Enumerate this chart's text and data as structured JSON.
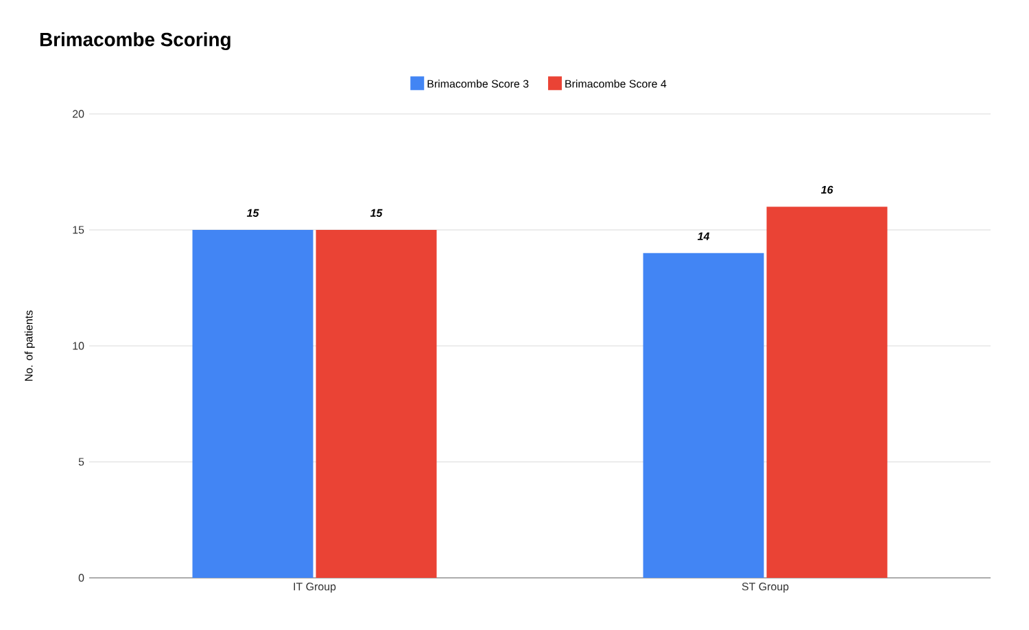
{
  "chart_data": {
    "type": "bar",
    "title": "Brimacombe Scoring",
    "ylabel": "No. of patients",
    "categories": [
      "IT Group",
      "ST Group"
    ],
    "series": [
      {
        "name": "Brimacombe Score 3",
        "color": "#4285f4",
        "values": [
          15,
          14
        ]
      },
      {
        "name": "Brimacombe Score 4",
        "color": "#ea4335",
        "values": [
          15,
          16
        ]
      }
    ],
    "ylim": [
      0,
      20
    ],
    "yticks": [
      0,
      5,
      10,
      15,
      20
    ],
    "grid": "y",
    "legend": "top",
    "data_labels": true
  }
}
